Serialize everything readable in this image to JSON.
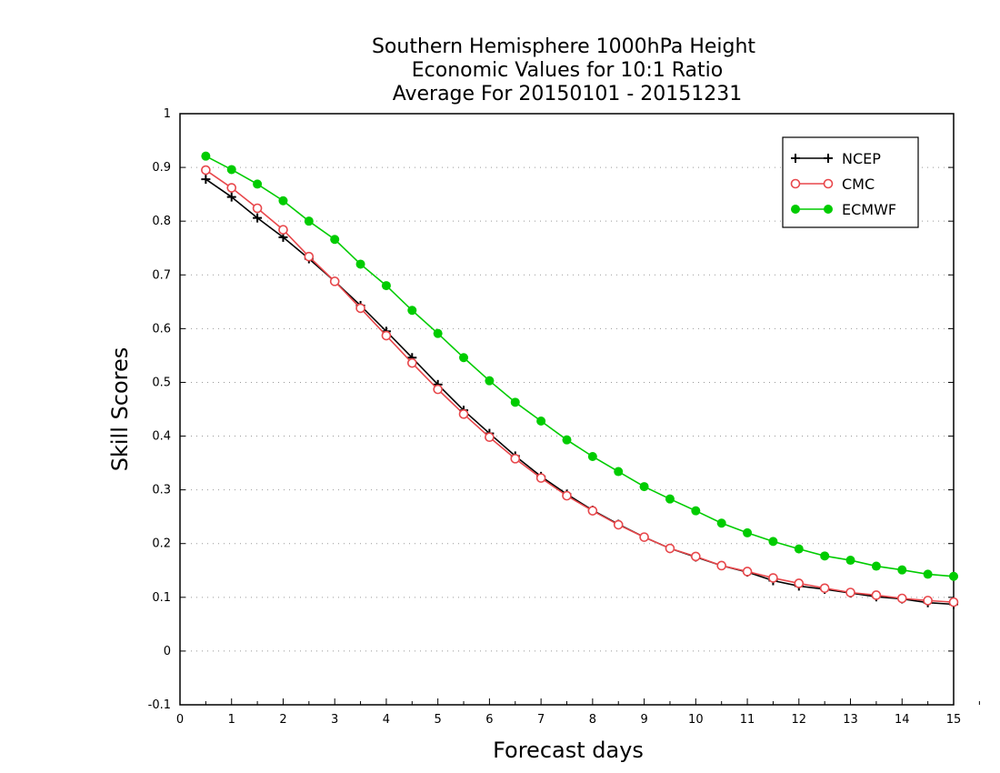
{
  "chart_data": {
    "type": "line",
    "title_lines": [
      "Southern Hemisphere 1000hPa Height",
      "Economic Values for 10:1 Ratio",
      "Average For 20150101 - 20151231"
    ],
    "xlabel": "Forecast days",
    "ylabel": "Skill Scores",
    "xlim": [
      0,
      15
    ],
    "ylim": [
      -0.1,
      1
    ],
    "xticks": [
      "0",
      "1",
      "2",
      "3",
      "4",
      "5",
      "6",
      "7",
      "8",
      "9",
      "10",
      "11",
      "12",
      "13",
      "14",
      "15"
    ],
    "yticks": [
      "-0.1",
      "0",
      "0.1",
      "0.2",
      "0.3",
      "0.4",
      "0.5",
      "0.6",
      "0.7",
      "0.8",
      "0.9",
      "1"
    ],
    "grid": "horizontal dotted",
    "legend_position": "top-right",
    "x": [
      0.5,
      1,
      1.5,
      2,
      2.5,
      3,
      3.5,
      4,
      4.5,
      5,
      5.5,
      6,
      6.5,
      7,
      7.5,
      8,
      8.5,
      9,
      9.5,
      10,
      10.5,
      11,
      11.5,
      12,
      12.5,
      13,
      13.5,
      14,
      14.5,
      15
    ],
    "series": [
      {
        "name": "NCEP",
        "color": "#000000",
        "marker": "plus",
        "values": [
          0.878,
          0.845,
          0.806,
          0.77,
          0.73,
          0.688,
          0.643,
          0.595,
          0.546,
          0.496,
          0.448,
          0.405,
          0.363,
          0.325,
          0.292,
          0.262,
          0.236,
          0.212,
          0.191,
          0.175,
          0.159,
          0.147,
          0.131,
          0.121,
          0.115,
          0.108,
          0.101,
          0.097,
          0.09,
          0.087
        ]
      },
      {
        "name": "CMC",
        "color": "#e8474b",
        "marker": "open-circle",
        "values": [
          0.895,
          0.862,
          0.824,
          0.784,
          0.734,
          0.688,
          0.638,
          0.587,
          0.536,
          0.487,
          0.441,
          0.398,
          0.358,
          0.322,
          0.289,
          0.261,
          0.235,
          0.212,
          0.191,
          0.176,
          0.159,
          0.148,
          0.136,
          0.126,
          0.117,
          0.109,
          0.104,
          0.098,
          0.094,
          0.091
        ]
      },
      {
        "name": "ECMWF",
        "color": "#00cc00",
        "marker": "filled-circle",
        "values": [
          0.921,
          0.896,
          0.869,
          0.838,
          0.8,
          0.766,
          0.72,
          0.68,
          0.634,
          0.591,
          0.546,
          0.503,
          0.463,
          0.428,
          0.393,
          0.362,
          0.334,
          0.306,
          0.283,
          0.261,
          0.238,
          0.22,
          0.204,
          0.19,
          0.177,
          0.169,
          0.158,
          0.151,
          0.143,
          0.139
        ]
      }
    ]
  }
}
